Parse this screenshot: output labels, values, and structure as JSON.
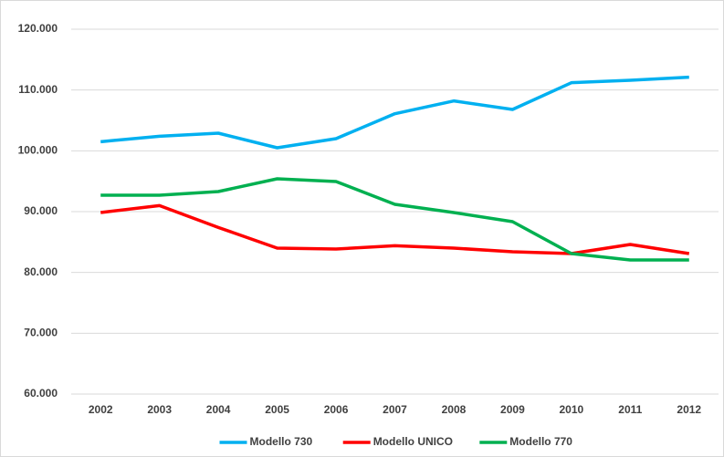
{
  "chart_data": {
    "type": "line",
    "categories": [
      "2002",
      "2003",
      "2004",
      "2005",
      "2006",
      "2007",
      "2008",
      "2009",
      "2010",
      "2011",
      "2012"
    ],
    "series": [
      {
        "name": "Modello 730",
        "color": "#00b0f0",
        "values": [
          101500,
          102400,
          102900,
          100500,
          102000,
          106100,
          108200,
          106800,
          111200,
          111600,
          112100
        ]
      },
      {
        "name": "Modello UNICO",
        "color": "#ff0000",
        "values": [
          89850,
          91000,
          87400,
          84000,
          83850,
          84400,
          84000,
          83400,
          83100,
          84600,
          83100
        ]
      },
      {
        "name": "Modello 770",
        "color": "#00b050",
        "values": [
          92700,
          92700,
          93300,
          95400,
          94950,
          91200,
          89850,
          88350,
          83100,
          82050,
          82050
        ]
      }
    ],
    "ylim": [
      60000,
      120000
    ],
    "yticks": [
      {
        "value": 60000,
        "label": "60.000"
      },
      {
        "value": 70000,
        "label": "70.000"
      },
      {
        "value": 80000,
        "label": "80.000"
      },
      {
        "value": 90000,
        "label": "90.000"
      },
      {
        "value": 100000,
        "label": "100.000"
      },
      {
        "value": 110000,
        "label": "110.000"
      },
      {
        "value": 120000,
        "label": "120.000"
      }
    ],
    "grid": true,
    "legend": "bottom"
  }
}
